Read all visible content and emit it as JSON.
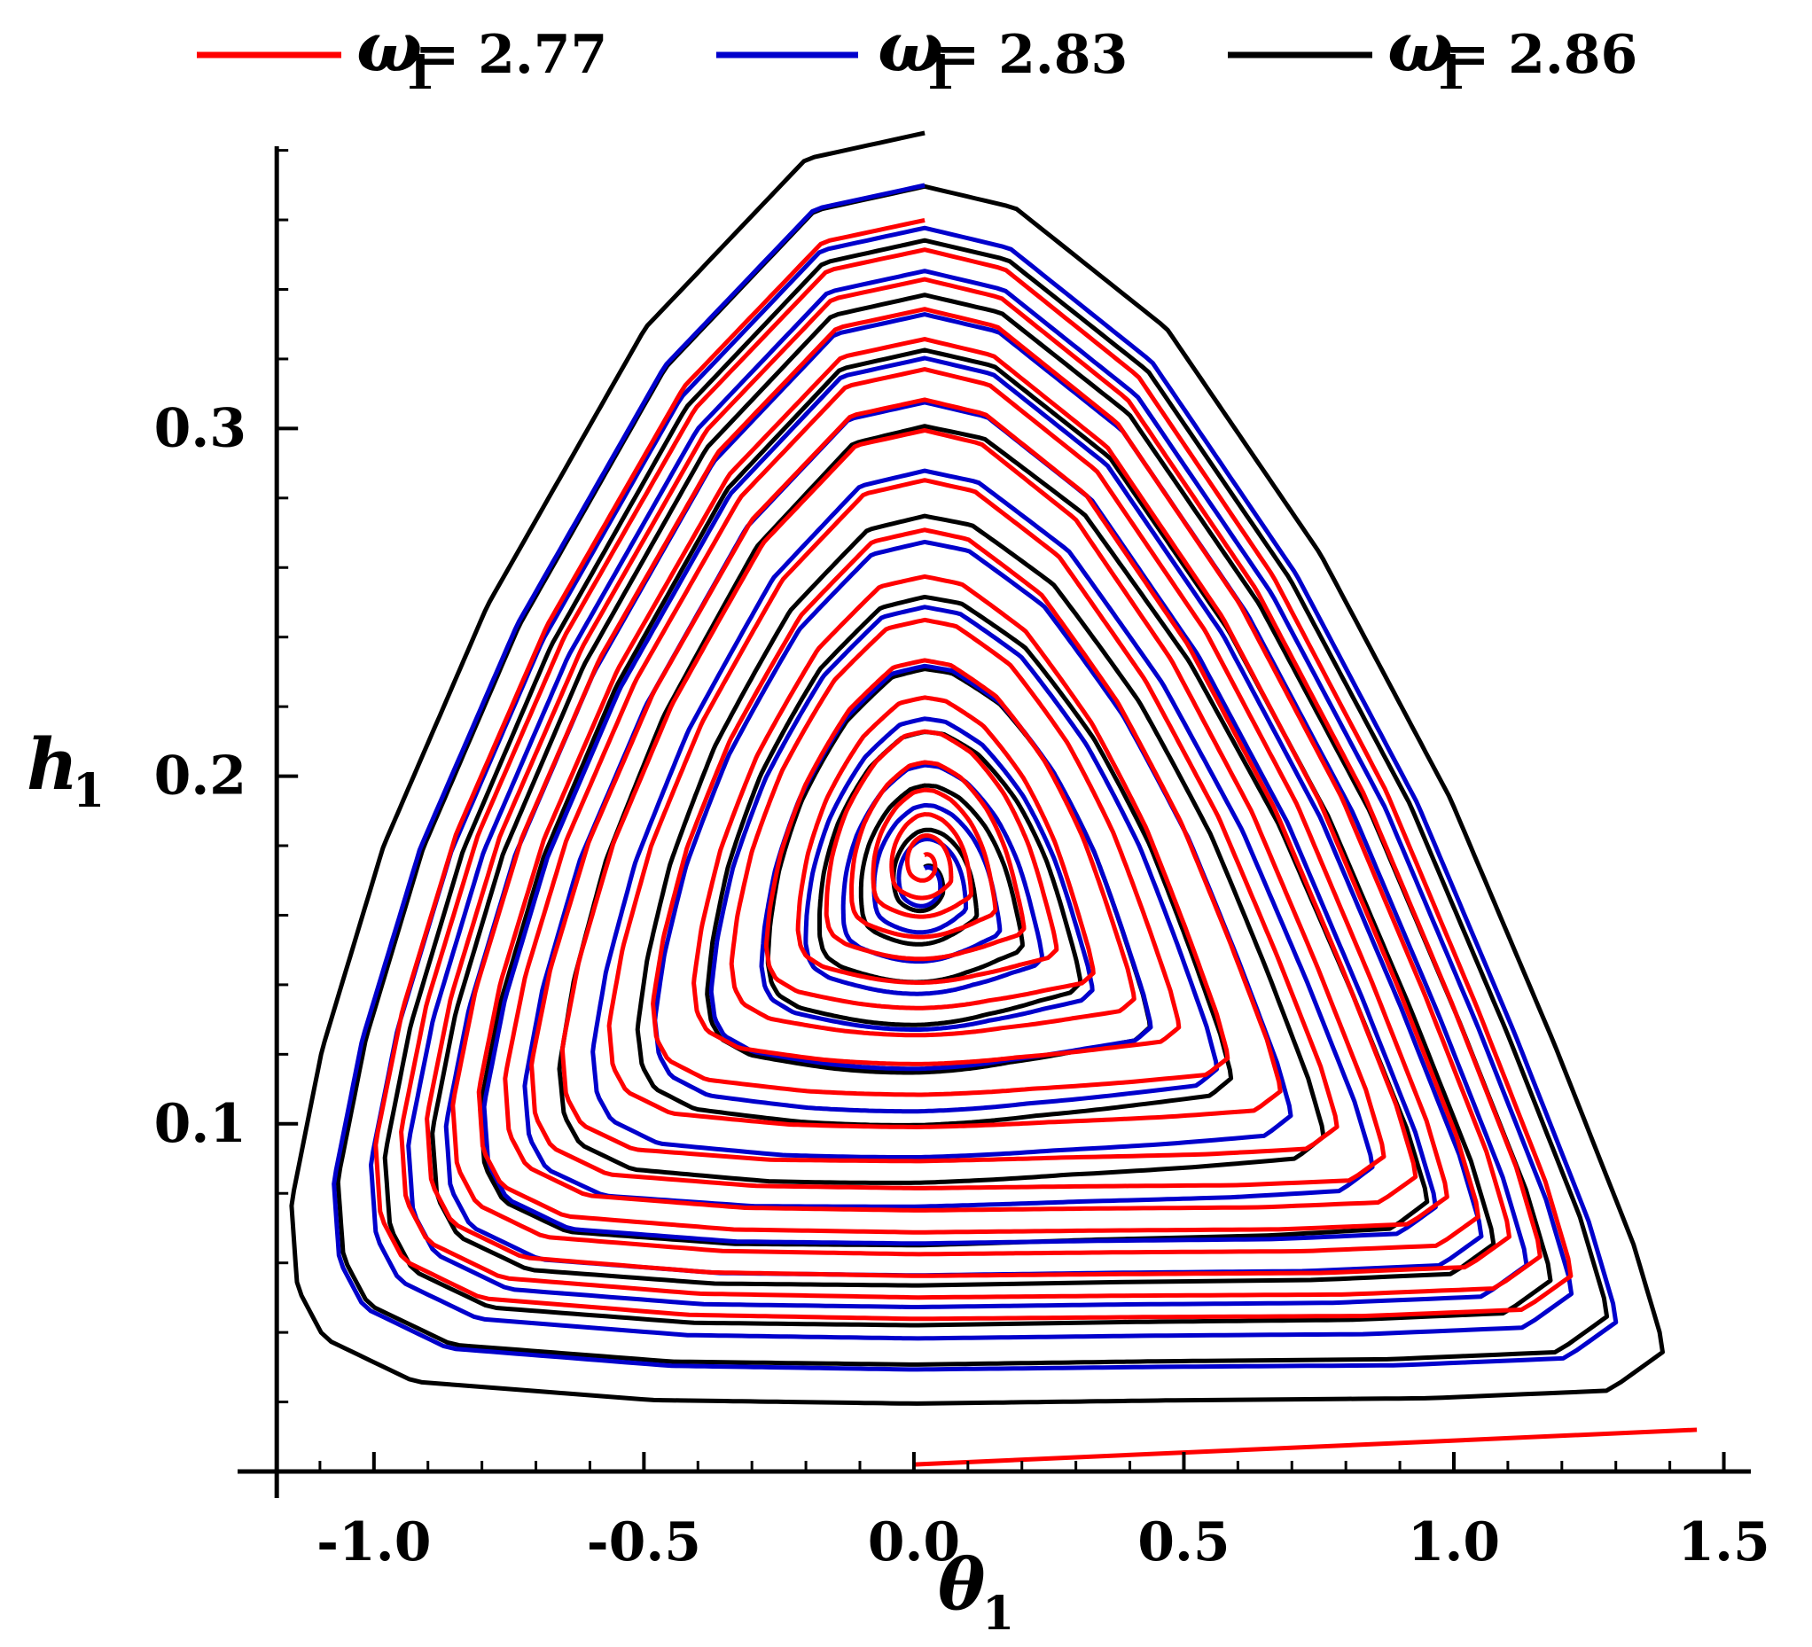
{
  "chart_data": {
    "type": "line",
    "title": "",
    "xlabel": {
      "symbol": "θ",
      "subscript": "1"
    },
    "ylabel": {
      "symbol": "h",
      "subscript": "1"
    },
    "xlim": [
      -1.2,
      1.55
    ],
    "ylim": [
      0.0,
      0.385
    ],
    "x_ticks": [
      -1.0,
      -0.5,
      0.0,
      0.5,
      1.0,
      1.5
    ],
    "x_tick_labels": [
      "-1.0",
      "-0.5",
      "0.0",
      "0.5",
      "1.0",
      "1.5"
    ],
    "y_ticks": [
      0.1,
      0.2,
      0.3
    ],
    "y_tick_labels": [
      "0.1",
      "0.2",
      "0.3"
    ],
    "grid": false,
    "legend_position": "top",
    "series": [
      {
        "name": "ω1 = 2.77",
        "label_symbol": "ω",
        "label_sub": "1",
        "label_value": "= 2.77",
        "color": "#ff0000",
        "spiral": {
          "center": [
            0.02,
            0.175
          ],
          "start_radius": 0.03,
          "max_extent": 0.86,
          "turns": 19
        }
      },
      {
        "name": "ω1 = 2.83",
        "label_symbol": "ω",
        "label_sub": "1",
        "label_value": "= 2.83",
        "color": "#0000cc",
        "spiral": {
          "center": [
            0.02,
            0.17
          ],
          "start_radius": 0.045,
          "max_extent": 0.93,
          "turns": 14
        }
      },
      {
        "name": "ω1 = 2.86",
        "label_symbol": "ω",
        "label_sub": "1",
        "label_value": "= 2.86",
        "color": "#000000",
        "spiral": {
          "center": [
            0.02,
            0.17
          ],
          "start_radius": 0.05,
          "max_extent": 1.0,
          "turns": 12
        }
      }
    ]
  }
}
